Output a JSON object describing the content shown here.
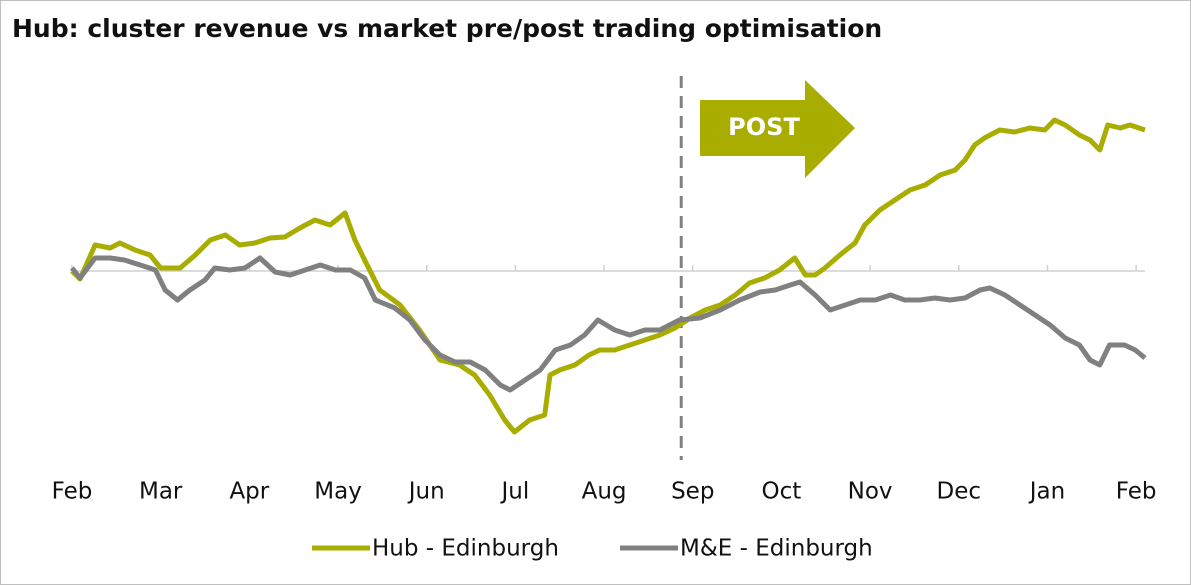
{
  "chart_data": {
    "type": "line",
    "title": "Hub: cluster revenue vs market pre/post trading optimisation",
    "annotation": "POST",
    "divider_x": 6.87,
    "xlim": [
      0,
      12.1
    ],
    "xticks": [
      {
        "value": 0,
        "label": "Feb"
      },
      {
        "value": 1,
        "label": "Mar"
      },
      {
        "value": 2,
        "label": "Apr"
      },
      {
        "value": 3,
        "label": "May"
      },
      {
        "value": 4,
        "label": "Jun"
      },
      {
        "value": 5,
        "label": "Jul"
      },
      {
        "value": 6,
        "label": "Aug"
      },
      {
        "value": 7,
        "label": "Sep"
      },
      {
        "value": 8,
        "label": "Oct"
      },
      {
        "value": 9,
        "label": "Nov"
      },
      {
        "value": 10,
        "label": "Dec"
      },
      {
        "value": 11,
        "label": "Jan"
      },
      {
        "value": 12,
        "label": "Feb"
      }
    ],
    "ylim": [
      -19,
      19
    ],
    "legend": "bottom",
    "series": [
      {
        "name": "Hub - Edinburgh",
        "color": "#a8ad00",
        "x": [
          0,
          0.09,
          0.26,
          0.43,
          0.54,
          0.71,
          0.88,
          1.0,
          1.1,
          1.22,
          1.39,
          1.56,
          1.73,
          1.89,
          2.06,
          2.23,
          2.4,
          2.57,
          2.74,
          2.91,
          3.08,
          3.19,
          3.3,
          3.47,
          3.7,
          3.92,
          4.15,
          4.37,
          4.54,
          4.71,
          4.88,
          4.99,
          5.16,
          5.33,
          5.39,
          5.5,
          5.67,
          5.83,
          5.95,
          6.12,
          6.29,
          6.46,
          6.63,
          6.8,
          6.97,
          7.14,
          7.31,
          7.48,
          7.64,
          7.81,
          7.98,
          8.15,
          8.27,
          8.38,
          8.49,
          8.66,
          8.83,
          8.94,
          9.11,
          9.28,
          9.45,
          9.62,
          9.79,
          9.96,
          10.07,
          10.18,
          10.29,
          10.46,
          10.63,
          10.8,
          10.97,
          11.08,
          11.2,
          11.36,
          11.48,
          11.59,
          11.68,
          11.82,
          11.93,
          12.1
        ],
        "values": [
          0,
          -0.8,
          2.6,
          2.3,
          2.8,
          2.1,
          1.6,
          0.3,
          0.3,
          0.3,
          1.6,
          3.1,
          3.6,
          2.6,
          2.8,
          3.3,
          3.4,
          4.3,
          5.1,
          4.6,
          5.8,
          3.1,
          1.1,
          -1.9,
          -3.4,
          -5.9,
          -8.9,
          -9.4,
          -10.4,
          -12.4,
          -14.9,
          -16.1,
          -14.9,
          -14.4,
          -10.4,
          -9.9,
          -9.4,
          -8.4,
          -7.9,
          -7.9,
          -7.4,
          -6.9,
          -6.4,
          -5.7,
          -4.7,
          -3.9,
          -3.4,
          -2.4,
          -1.2,
          -0.7,
          0.1,
          1.3,
          -0.4,
          -0.4,
          0.3,
          1.6,
          2.8,
          4.6,
          6.1,
          7.1,
          8.1,
          8.6,
          9.6,
          10.1,
          11.1,
          12.6,
          13.3,
          14.1,
          13.9,
          14.3,
          14.1,
          15.1,
          14.6,
          13.6,
          13.1,
          12.1,
          14.6,
          14.3,
          14.6,
          14.1
        ]
      },
      {
        "name": "M&E - Edinburgh",
        "color": "#808080",
        "x": [
          0,
          0.09,
          0.26,
          0.43,
          0.59,
          0.77,
          0.94,
          1.05,
          1.19,
          1.33,
          1.5,
          1.61,
          1.78,
          1.95,
          2.12,
          2.29,
          2.46,
          2.63,
          2.8,
          2.97,
          3.14,
          3.3,
          3.42,
          3.64,
          3.81,
          3.98,
          4.15,
          4.32,
          4.49,
          4.66,
          4.83,
          4.94,
          5.11,
          5.28,
          5.45,
          5.62,
          5.78,
          5.93,
          6.12,
          6.29,
          6.46,
          6.63,
          6.85,
          7.08,
          7.31,
          7.53,
          7.76,
          7.93,
          8.1,
          8.21,
          8.38,
          8.55,
          8.72,
          8.89,
          9.06,
          9.23,
          9.39,
          9.56,
          9.73,
          9.9,
          10.07,
          10.24,
          10.35,
          10.52,
          10.69,
          10.86,
          11.03,
          11.2,
          11.36,
          11.48,
          11.59,
          11.7,
          11.87,
          11.99,
          12.1
        ],
        "values": [
          0.3,
          -0.7,
          1.3,
          1.3,
          1.1,
          0.6,
          0.1,
          -1.9,
          -2.9,
          -1.9,
          -0.9,
          0.3,
          0.1,
          0.3,
          1.3,
          -0.1,
          -0.4,
          0.1,
          0.6,
          0.1,
          0.1,
          -0.7,
          -2.9,
          -3.7,
          -4.9,
          -6.9,
          -8.4,
          -9.1,
          -9.1,
          -9.9,
          -11.4,
          -11.9,
          -10.9,
          -9.9,
          -7.9,
          -7.4,
          -6.4,
          -4.9,
          -5.9,
          -6.4,
          -5.9,
          -5.9,
          -4.9,
          -4.7,
          -3.9,
          -2.9,
          -2.1,
          -1.9,
          -1.4,
          -1.1,
          -2.4,
          -3.9,
          -3.4,
          -2.9,
          -2.9,
          -2.4,
          -2.9,
          -2.9,
          -2.7,
          -2.9,
          -2.7,
          -1.9,
          -1.7,
          -2.4,
          -3.4,
          -4.4,
          -5.4,
          -6.7,
          -7.4,
          -8.9,
          -9.4,
          -7.4,
          -7.4,
          -7.9,
          -8.7
        ]
      }
    ]
  }
}
